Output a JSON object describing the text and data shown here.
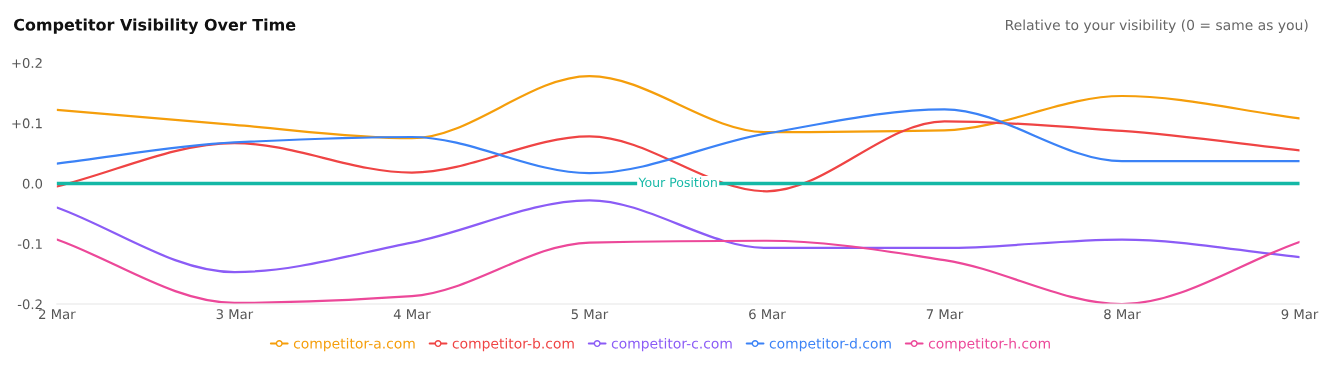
{
  "chart_data": {
    "type": "line",
    "title": "Competitor Visibility Over Time",
    "annotations": [
      "Relative to your visibility (0 = same as you)"
    ],
    "categories": [
      "2 Mar",
      "3 Mar",
      "4 Mar",
      "5 Mar",
      "6 Mar",
      "7 Mar",
      "8 Mar",
      "9 Mar"
    ],
    "series": [
      {
        "name": "competitor-a.com",
        "color": "#f59e0b",
        "values": [
          0.122,
          0.097,
          0.075,
          0.178,
          0.085,
          0.088,
          0.145,
          0.108
        ]
      },
      {
        "name": "competitor-b.com",
        "color": "#ef4444",
        "values": [
          -0.005,
          0.067,
          0.018,
          0.078,
          -0.013,
          0.103,
          0.087,
          0.055
        ]
      },
      {
        "name": "competitor-c.com",
        "color": "#8b5cf6",
        "values": [
          -0.04,
          -0.147,
          -0.098,
          -0.028,
          -0.107,
          -0.107,
          -0.093,
          -0.122
        ]
      },
      {
        "name": "competitor-d.com",
        "color": "#3b82f6",
        "values": [
          0.033,
          0.068,
          0.077,
          0.017,
          0.083,
          0.123,
          0.037,
          0.037
        ]
      },
      {
        "name": "competitor-h.com",
        "color": "#ec4899",
        "values": [
          -0.093,
          -0.198,
          -0.187,
          -0.098,
          -0.095,
          -0.127,
          -0.2,
          -0.097
        ]
      }
    ],
    "ylim": [
      -0.2,
      0.2
    ],
    "yticks": [
      {
        "value": -0.2,
        "label": "-0.2"
      },
      {
        "value": -0.1,
        "label": "-0.1"
      },
      {
        "value": 0,
        "label": "0.0"
      },
      {
        "value": 0.1,
        "label": "+0.1"
      },
      {
        "value": 0.2,
        "label": "+0.2"
      }
    ],
    "ref_lines": [
      {
        "axis": "y",
        "value": 0,
        "label": "Your Position",
        "color": "#14b8a6"
      }
    ],
    "grid": false,
    "legend": "bottom"
  }
}
